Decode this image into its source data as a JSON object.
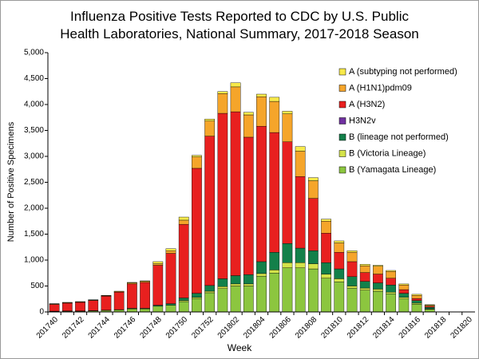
{
  "chart_data": {
    "type": "stacked-bar",
    "title": "Influenza Positive Tests Reported to CDC by U.S. Public Health Laboratories, National Summary, 2017-2018 Season",
    "x_label": "Week",
    "y_label": "Number of Positive Specimens",
    "categories": [
      "201740",
      null,
      "201742",
      null,
      "201744",
      null,
      "201746",
      null,
      "201748",
      null,
      "201750",
      null,
      "201752",
      null,
      "201802",
      null,
      "201804",
      null,
      "201806",
      null,
      "201808",
      null,
      "201810",
      null,
      "201812",
      null,
      "201814",
      null,
      "201816",
      null,
      "201818",
      null,
      "201820"
    ],
    "series": [
      {
        "name": "B (Yamagata Lineage)",
        "color": "#8cc63f",
        "values": [
          10,
          15,
          15,
          20,
          30,
          40,
          60,
          60,
          110,
          130,
          200,
          260,
          370,
          450,
          500,
          500,
          690,
          750,
          850,
          850,
          830,
          650,
          580,
          460,
          420,
          400,
          350,
          250,
          150,
          50,
          0,
          0,
          0
        ]
      },
      {
        "name": "B (Victoria Lineage)",
        "color": "#d4e34a",
        "values": [
          0,
          0,
          0,
          0,
          0,
          0,
          0,
          0,
          0,
          0,
          20,
          20,
          30,
          40,
          40,
          40,
          50,
          60,
          100,
          100,
          100,
          80,
          60,
          40,
          40,
          40,
          30,
          30,
          20,
          10,
          0,
          0,
          0
        ]
      },
      {
        "name": "B (lineage not performed)",
        "color": "#13804a",
        "values": [
          5,
          5,
          5,
          5,
          5,
          5,
          10,
          10,
          20,
          30,
          50,
          80,
          110,
          150,
          160,
          180,
          230,
          340,
          370,
          280,
          250,
          220,
          190,
          180,
          130,
          120,
          140,
          80,
          50,
          30,
          0,
          0,
          0
        ]
      },
      {
        "name": "H3N2v",
        "color": "#7030a0",
        "values": [
          0,
          0,
          0,
          0,
          0,
          0,
          0,
          0,
          0,
          0,
          0,
          0,
          0,
          0,
          0,
          0,
          0,
          0,
          0,
          0,
          0,
          0,
          0,
          0,
          0,
          0,
          0,
          0,
          0,
          0,
          0,
          0,
          0
        ]
      },
      {
        "name": "A (H3N2)",
        "color": "#e8201f",
        "values": [
          130,
          150,
          165,
          195,
          270,
          335,
          470,
          500,
          770,
          970,
          1420,
          2410,
          2880,
          3190,
          3160,
          2650,
          2610,
          2310,
          1960,
          1380,
          1010,
          570,
          320,
          290,
          170,
          170,
          130,
          70,
          40,
          20,
          0,
          0,
          0
        ]
      },
      {
        "name": "A (H1N1)pdm09",
        "color": "#f5a52a",
        "values": [
          10,
          10,
          10,
          10,
          10,
          15,
          20,
          20,
          30,
          50,
          80,
          220,
          290,
          380,
          480,
          430,
          570,
          600,
          540,
          490,
          340,
          230,
          180,
          180,
          130,
          150,
          130,
          90,
          60,
          20,
          0,
          0,
          0
        ]
      },
      {
        "name": "A (subtyping not performed)",
        "color": "#f7e94a",
        "values": [
          5,
          5,
          5,
          5,
          5,
          5,
          10,
          10,
          40,
          40,
          60,
          30,
          40,
          40,
          80,
          50,
          50,
          80,
          50,
          90,
          60,
          40,
          40,
          30,
          30,
          20,
          20,
          20,
          20,
          10,
          0,
          0,
          0
        ]
      }
    ],
    "ylim": [
      0,
      5000
    ],
    "yticks": [
      0,
      500,
      {
        "value": 1000,
        "label": "1,000"
      },
      {
        "value": 1500,
        "label": "1,500"
      },
      {
        "value": 2000,
        "label": "2,000"
      },
      {
        "value": 2500,
        "label": "2,500"
      },
      {
        "value": 3000,
        "label": "3,000"
      },
      {
        "value": 3500,
        "label": "3,500"
      },
      {
        "value": 4000,
        "label": "4,000"
      },
      {
        "value": 4500,
        "label": "4,500"
      },
      {
        "value": 5000,
        "label": "5,000"
      }
    ],
    "legend": "top-right",
    "grid": false
  }
}
